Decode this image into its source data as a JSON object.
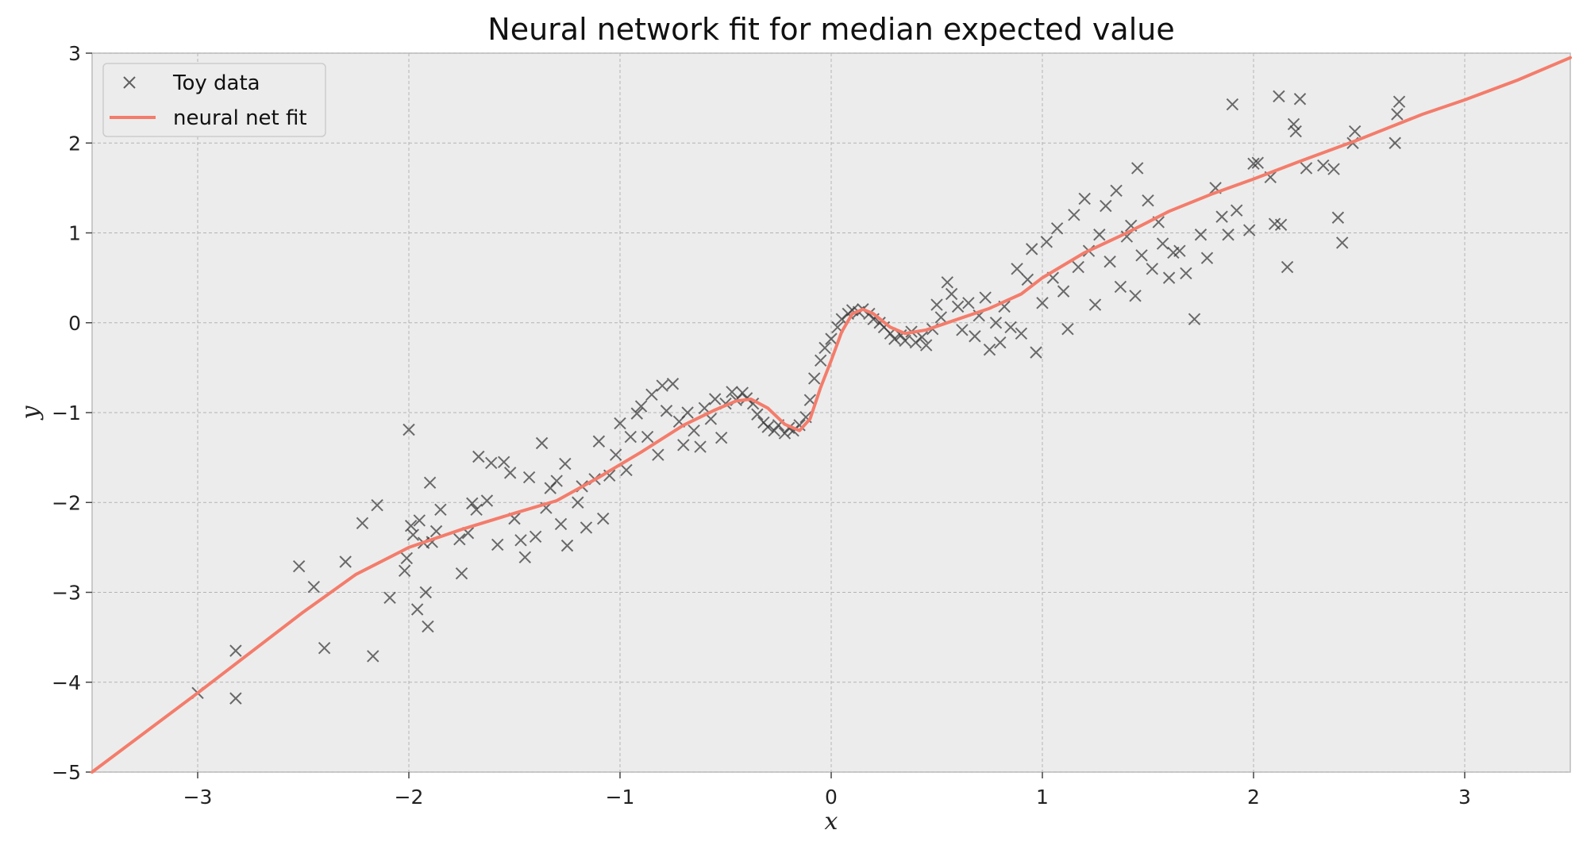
{
  "chart_data": {
    "type": "scatter",
    "title": "Neural network fit for median expected value",
    "xlabel": "x",
    "ylabel": "y",
    "xlim": [
      -3.5,
      3.5
    ],
    "ylim": [
      -5,
      3
    ],
    "xticks": [
      -3,
      -2,
      -1,
      0,
      1,
      2,
      3
    ],
    "yticks": [
      -5,
      -4,
      -3,
      -2,
      -1,
      0,
      1,
      2,
      3
    ],
    "xtick_labels": [
      "−3",
      "−2",
      "−1",
      "0",
      "1",
      "2",
      "3"
    ],
    "ytick_labels": [
      "−5",
      "−4",
      "−3",
      "−2",
      "−1",
      "0",
      "1",
      "2",
      "3"
    ],
    "grid": true,
    "legend_position": "top-left",
    "colors": {
      "data": "#333333",
      "fit": "#f47c6b",
      "background": "#ececec",
      "grid": "#b3b3b3"
    },
    "series": [
      {
        "name": "Toy data",
        "kind": "scatter",
        "marker": "x",
        "points": [
          [
            -3.0,
            -4.12
          ],
          [
            -2.82,
            -3.65
          ],
          [
            -2.82,
            -4.18
          ],
          [
            -2.52,
            -2.71
          ],
          [
            -2.45,
            -2.94
          ],
          [
            -2.4,
            -3.62
          ],
          [
            -2.3,
            -2.66
          ],
          [
            -2.22,
            -2.23
          ],
          [
            -2.17,
            -3.71
          ],
          [
            -2.15,
            -2.03
          ],
          [
            -2.09,
            -3.06
          ],
          [
            -2.02,
            -2.76
          ],
          [
            -2.01,
            -2.62
          ],
          [
            -2.0,
            -1.19
          ],
          [
            -1.99,
            -2.26
          ],
          [
            -1.98,
            -2.36
          ],
          [
            -1.96,
            -3.19
          ],
          [
            -1.95,
            -2.2
          ],
          [
            -1.93,
            -2.45
          ],
          [
            -1.92,
            -3.0
          ],
          [
            -1.91,
            -3.38
          ],
          [
            -1.9,
            -1.78
          ],
          [
            -1.89,
            -2.44
          ],
          [
            -1.87,
            -2.32
          ],
          [
            -1.85,
            -2.08
          ],
          [
            -1.76,
            -2.41
          ],
          [
            -1.75,
            -2.79
          ],
          [
            -1.72,
            -2.34
          ],
          [
            -1.7,
            -2.01
          ],
          [
            -1.68,
            -2.08
          ],
          [
            -1.67,
            -1.49
          ],
          [
            -1.63,
            -1.98
          ],
          [
            -1.61,
            -1.56
          ],
          [
            -1.58,
            -2.47
          ],
          [
            -1.55,
            -1.55
          ],
          [
            -1.52,
            -1.67
          ],
          [
            -1.5,
            -2.18
          ],
          [
            -1.47,
            -2.42
          ],
          [
            -1.45,
            -2.61
          ],
          [
            -1.43,
            -1.72
          ],
          [
            -1.4,
            -2.38
          ],
          [
            -1.37,
            -1.34
          ],
          [
            -1.35,
            -2.06
          ],
          [
            -1.33,
            -1.84
          ],
          [
            -1.3,
            -1.76
          ],
          [
            -1.28,
            -2.24
          ],
          [
            -1.26,
            -1.57
          ],
          [
            -1.25,
            -2.48
          ],
          [
            -1.2,
            -2.0
          ],
          [
            -1.18,
            -1.82
          ],
          [
            -1.16,
            -2.28
          ],
          [
            -1.12,
            -1.74
          ],
          [
            -1.1,
            -1.32
          ],
          [
            -1.08,
            -2.18
          ],
          [
            -1.05,
            -1.7
          ],
          [
            -1.02,
            -1.47
          ],
          [
            -1.0,
            -1.12
          ],
          [
            -0.97,
            -1.64
          ],
          [
            -0.95,
            -1.27
          ],
          [
            -0.92,
            -1.01
          ],
          [
            -0.9,
            -0.93
          ],
          [
            -0.87,
            -1.27
          ],
          [
            -0.85,
            -0.8
          ],
          [
            -0.82,
            -1.47
          ],
          [
            -0.8,
            -0.7
          ],
          [
            -0.78,
            -0.98
          ],
          [
            -0.75,
            -0.68
          ],
          [
            -0.72,
            -1.1
          ],
          [
            -0.7,
            -1.36
          ],
          [
            -0.68,
            -1.0
          ],
          [
            -0.65,
            -1.2
          ],
          [
            -0.62,
            -1.38
          ],
          [
            -0.6,
            -0.95
          ],
          [
            -0.57,
            -1.07
          ],
          [
            -0.55,
            -0.85
          ],
          [
            -0.52,
            -1.28
          ],
          [
            -0.5,
            -0.9
          ],
          [
            -0.47,
            -0.77
          ],
          [
            -0.45,
            -0.86
          ],
          [
            -0.42,
            -0.78
          ],
          [
            -0.4,
            -0.84
          ],
          [
            -0.37,
            -0.9
          ],
          [
            -0.35,
            -1.02
          ],
          [
            -0.32,
            -1.11
          ],
          [
            -0.3,
            -1.16
          ],
          [
            -0.27,
            -1.2
          ],
          [
            -0.25,
            -1.14
          ],
          [
            -0.22,
            -1.23
          ],
          [
            -0.2,
            -1.17
          ],
          [
            -0.18,
            -1.2
          ],
          [
            -0.15,
            -1.14
          ],
          [
            -0.12,
            -1.05
          ],
          [
            -0.1,
            -0.86
          ],
          [
            -0.08,
            -0.62
          ],
          [
            -0.05,
            -0.42
          ],
          [
            -0.03,
            -0.28
          ],
          [
            0.0,
            -0.18
          ],
          [
            0.03,
            -0.05
          ],
          [
            0.05,
            0.04
          ],
          [
            0.08,
            0.1
          ],
          [
            0.1,
            0.14
          ],
          [
            0.13,
            0.12
          ],
          [
            0.15,
            0.15
          ],
          [
            0.18,
            0.1
          ],
          [
            0.2,
            0.04
          ],
          [
            0.23,
            0.0
          ],
          [
            0.25,
            -0.05
          ],
          [
            0.28,
            -0.12
          ],
          [
            0.3,
            -0.18
          ],
          [
            0.33,
            -0.14
          ],
          [
            0.35,
            -0.2
          ],
          [
            0.38,
            -0.1
          ],
          [
            0.4,
            -0.22
          ],
          [
            0.43,
            -0.16
          ],
          [
            0.45,
            -0.25
          ],
          [
            0.48,
            -0.07
          ],
          [
            0.5,
            0.2
          ],
          [
            0.52,
            0.06
          ],
          [
            0.55,
            0.45
          ],
          [
            0.57,
            0.32
          ],
          [
            0.6,
            0.18
          ],
          [
            0.62,
            -0.08
          ],
          [
            0.65,
            0.22
          ],
          [
            0.68,
            -0.15
          ],
          [
            0.7,
            0.08
          ],
          [
            0.73,
            0.28
          ],
          [
            0.75,
            -0.3
          ],
          [
            0.78,
            0.0
          ],
          [
            0.8,
            -0.22
          ],
          [
            0.82,
            0.18
          ],
          [
            0.85,
            -0.05
          ],
          [
            0.88,
            0.6
          ],
          [
            0.9,
            -0.12
          ],
          [
            0.93,
            0.48
          ],
          [
            0.95,
            0.82
          ],
          [
            0.97,
            -0.33
          ],
          [
            1.0,
            0.22
          ],
          [
            1.02,
            0.9
          ],
          [
            1.05,
            0.5
          ],
          [
            1.07,
            1.05
          ],
          [
            1.1,
            0.35
          ],
          [
            1.12,
            -0.07
          ],
          [
            1.15,
            1.2
          ],
          [
            1.17,
            0.62
          ],
          [
            1.2,
            1.38
          ],
          [
            1.22,
            0.8
          ],
          [
            1.25,
            0.2
          ],
          [
            1.27,
            0.98
          ],
          [
            1.3,
            1.3
          ],
          [
            1.32,
            0.68
          ],
          [
            1.35,
            1.47
          ],
          [
            1.37,
            0.4
          ],
          [
            1.4,
            0.96
          ],
          [
            1.42,
            1.08
          ],
          [
            1.44,
            0.3
          ],
          [
            1.45,
            1.72
          ],
          [
            1.47,
            0.75
          ],
          [
            1.5,
            1.36
          ],
          [
            1.52,
            0.6
          ],
          [
            1.55,
            1.12
          ],
          [
            1.57,
            0.88
          ],
          [
            1.6,
            0.5
          ],
          [
            1.62,
            0.78
          ],
          [
            1.65,
            0.8
          ],
          [
            1.68,
            0.55
          ],
          [
            1.72,
            0.04
          ],
          [
            1.75,
            0.98
          ],
          [
            1.78,
            0.72
          ],
          [
            1.82,
            1.5
          ],
          [
            1.85,
            1.18
          ],
          [
            1.88,
            0.98
          ],
          [
            1.9,
            2.43
          ],
          [
            1.92,
            1.25
          ],
          [
            1.98,
            1.03
          ],
          [
            2.0,
            1.77
          ],
          [
            2.02,
            1.78
          ],
          [
            2.08,
            1.62
          ],
          [
            2.1,
            1.1
          ],
          [
            2.12,
            2.52
          ],
          [
            2.13,
            1.09
          ],
          [
            2.16,
            0.62
          ],
          [
            2.19,
            2.21
          ],
          [
            2.2,
            2.13
          ],
          [
            2.22,
            2.49
          ],
          [
            2.25,
            1.72
          ],
          [
            2.33,
            1.75
          ],
          [
            2.38,
            1.71
          ],
          [
            2.4,
            1.17
          ],
          [
            2.42,
            0.89
          ],
          [
            2.47,
            2.0
          ],
          [
            2.48,
            2.13
          ],
          [
            2.67,
            2.0
          ],
          [
            2.68,
            2.32
          ],
          [
            2.69,
            2.46
          ]
        ]
      },
      {
        "name": "neural net fit",
        "kind": "line",
        "points": [
          [
            -3.5,
            -5.0
          ],
          [
            -3.0,
            -4.12
          ],
          [
            -2.5,
            -3.22
          ],
          [
            -2.25,
            -2.8
          ],
          [
            -2.0,
            -2.5
          ],
          [
            -1.75,
            -2.3
          ],
          [
            -1.5,
            -2.12
          ],
          [
            -1.3,
            -1.98
          ],
          [
            -1.1,
            -1.72
          ],
          [
            -0.9,
            -1.44
          ],
          [
            -0.7,
            -1.14
          ],
          [
            -0.55,
            -0.97
          ],
          [
            -0.45,
            -0.87
          ],
          [
            -0.38,
            -0.85
          ],
          [
            -0.3,
            -0.95
          ],
          [
            -0.22,
            -1.13
          ],
          [
            -0.15,
            -1.2
          ],
          [
            -0.1,
            -1.07
          ],
          [
            -0.05,
            -0.72
          ],
          [
            0.0,
            -0.42
          ],
          [
            0.05,
            -0.1
          ],
          [
            0.1,
            0.1
          ],
          [
            0.15,
            0.15
          ],
          [
            0.2,
            0.1
          ],
          [
            0.28,
            -0.05
          ],
          [
            0.35,
            -0.12
          ],
          [
            0.45,
            -0.08
          ],
          [
            0.6,
            0.04
          ],
          [
            0.75,
            0.16
          ],
          [
            0.9,
            0.32
          ],
          [
            1.0,
            0.5
          ],
          [
            1.2,
            0.78
          ],
          [
            1.4,
            1.0
          ],
          [
            1.6,
            1.24
          ],
          [
            1.8,
            1.43
          ],
          [
            2.0,
            1.6
          ],
          [
            2.2,
            1.78
          ],
          [
            2.5,
            2.04
          ],
          [
            2.8,
            2.32
          ],
          [
            3.0,
            2.48
          ],
          [
            3.25,
            2.7
          ],
          [
            3.5,
            2.95
          ]
        ]
      }
    ]
  }
}
